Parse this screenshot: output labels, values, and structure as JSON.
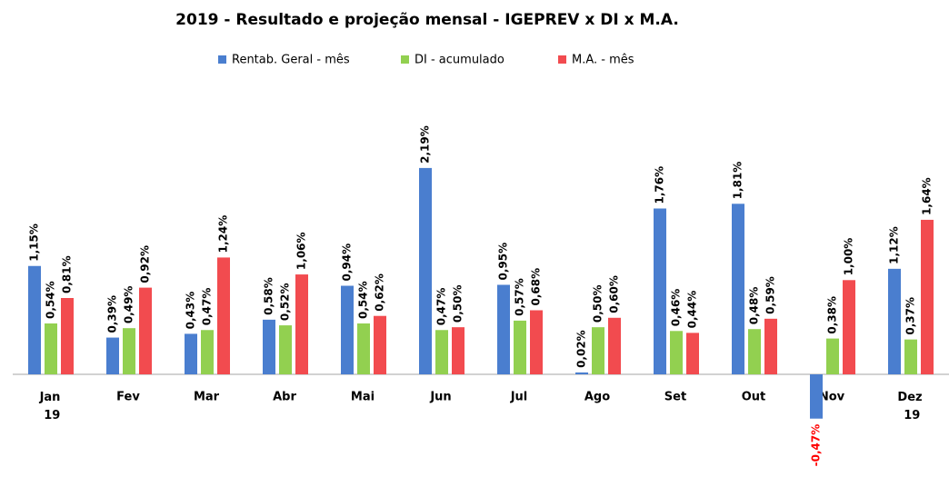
{
  "chart_data": {
    "type": "bar",
    "title": "2019 - Resultado e projeção mensal - IGEPREV x DI x M.A.",
    "categories": [
      "Jan 19",
      "Fev",
      "Mar",
      "Abr",
      "Mai",
      "Jun",
      "Jul",
      "Ago",
      "Set",
      "Out",
      "Nov",
      "Dez 19"
    ],
    "series": [
      {
        "name": "Rentab. Geral - mês",
        "color": "#4a7ecf",
        "values": [
          1.15,
          0.39,
          0.43,
          0.58,
          0.94,
          2.19,
          0.95,
          0.02,
          1.76,
          1.81,
          -0.47,
          1.12
        ],
        "value_labels": [
          "1,15%",
          "0,39%",
          "0,43%",
          "0,58%",
          "0,94%",
          "2,19%",
          "0,95%",
          "0,02%",
          "1,76%",
          "1,81%",
          "-0,47%",
          "1,12%"
        ]
      },
      {
        "name": "DI - acumulado",
        "color": "#92d050",
        "values": [
          0.54,
          0.49,
          0.47,
          0.52,
          0.54,
          0.47,
          0.57,
          0.5,
          0.46,
          0.48,
          0.38,
          0.37
        ],
        "value_labels": [
          "0,54%",
          "0,49%",
          "0,47%",
          "0,52%",
          "0,54%",
          "0,47%",
          "0,57%",
          "0,50%",
          "0,46%",
          "0,48%",
          "0,38%",
          "0,37%"
        ]
      },
      {
        "name": "M.A. - mês",
        "color": "#f24b4f",
        "values": [
          0.81,
          0.92,
          1.24,
          1.06,
          0.62,
          0.5,
          0.68,
          0.6,
          0.44,
          0.59,
          1.0,
          1.64
        ],
        "value_labels": [
          "0,81%",
          "0,92%",
          "1,24%",
          "1,06%",
          "0,62%",
          "0,50%",
          "0,68%",
          "0,60%",
          "0,44%",
          "0,59%",
          "1,00%",
          "1,64%"
        ]
      }
    ]
  }
}
